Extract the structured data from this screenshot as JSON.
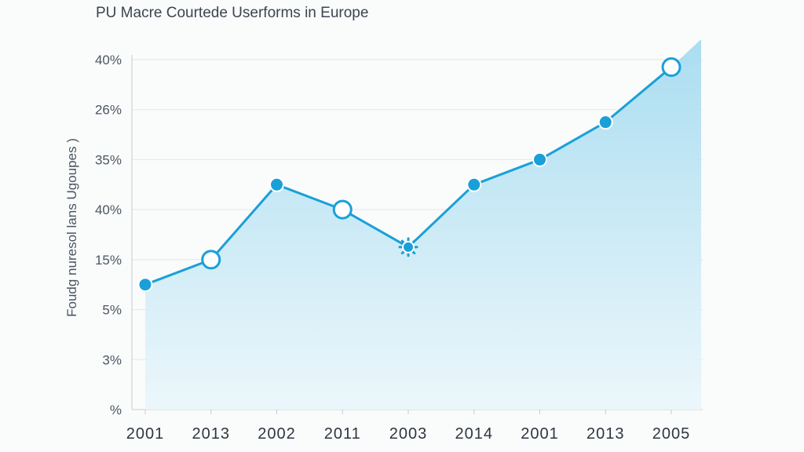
{
  "chart_data": {
    "type": "area",
    "title": "PU Macre Courtede Userforms in Europe",
    "ylabel": "Foudg nuresol lans Ugoupes )",
    "xlabel": "",
    "categories": [
      "2001",
      "2013",
      "2002",
      "2011",
      "2003",
      "2014",
      "2001",
      "2013",
      "2005"
    ],
    "y_tick_labels": [
      "40%",
      "26%",
      "35%",
      "40%",
      "15%",
      "5%",
      "3%",
      "%"
    ],
    "series": [
      {
        "values": [
          2.5,
          3.0,
          4.5,
          4.0,
          3.25,
          4.5,
          5.0,
          5.75,
          6.85
        ],
        "marker_styles": [
          "filled",
          "hollow",
          "filled",
          "hollow",
          "gear",
          "filled",
          "filled",
          "filled",
          "hollow"
        ]
      }
    ],
    "ylim": [
      0,
      7
    ],
    "grid": true,
    "legend": "none",
    "colors": {
      "line": "#1aa0d8",
      "fill_top": "#a6dcf0",
      "fill_bottom": "#eaf6fb",
      "grid": "#e3e7ea",
      "axis": "#c5ccd2"
    }
  }
}
